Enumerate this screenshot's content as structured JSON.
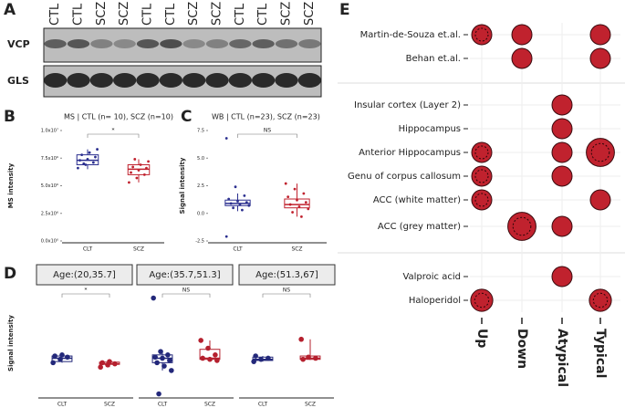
{
  "panel_labels": [
    "A",
    "B",
    "C",
    "D",
    "E"
  ],
  "blot": {
    "lanes": [
      "CTL",
      "CTL",
      "SCZ",
      "SCZ",
      "CTL",
      "CTL",
      "SCZ",
      "SCZ",
      "CTL",
      "CTL",
      "SCZ",
      "SCZ"
    ],
    "rows": [
      "VCP",
      "GLS"
    ]
  },
  "chart_data": [
    {
      "type": "box",
      "title": "MS | CTL (n= 10), SCZ (n=10)",
      "y_label": "MS intensity",
      "categories": [
        "CLT",
        "SCZ"
      ],
      "ylim": [
        0,
        10000000
      ],
      "yticks": [
        {
          "value": 0,
          "label": "0.0x10⁰"
        },
        {
          "value": 2500000,
          "label": "2.5x10⁶"
        },
        {
          "value": 5000000,
          "label": "5.0x10⁶"
        },
        {
          "value": 7500000,
          "label": "7.5x10⁶"
        },
        {
          "value": 10000000,
          "label": "1.0x10⁷"
        }
      ],
      "significance": "*",
      "boxes": [
        {
          "color": "#2b2f8f",
          "whisker_low": 6500000,
          "q1": 6900000,
          "median": 7300000,
          "q3": 7800000,
          "whisker_high": 8300000,
          "points": [
            6600000,
            6900000,
            7100000,
            7300000,
            7400000,
            7600000,
            7800000,
            8000000,
            8300000,
            7000000
          ]
        },
        {
          "color": "#c0222e",
          "whisker_low": 5300000,
          "q1": 6000000,
          "median": 6500000,
          "q3": 6900000,
          "whisker_high": 7400000,
          "points": [
            5300000,
            5700000,
            6000000,
            6200000,
            6400000,
            6600000,
            6700000,
            6900000,
            7200000,
            7400000
          ]
        }
      ]
    },
    {
      "type": "box",
      "title": "WB | CTL (n=23), SCZ (n=23)",
      "y_label": "Signal intensity",
      "categories": [
        "CLT",
        "SCZ"
      ],
      "ylim": [
        -2.5,
        7.5
      ],
      "yticks": [
        {
          "value": -2.5,
          "label": "-2.5"
        },
        {
          "value": 0,
          "label": "0.0"
        },
        {
          "value": 2.5,
          "label": "2.5"
        },
        {
          "value": 5,
          "label": "5.0"
        },
        {
          "value": 7.5,
          "label": "7.5"
        }
      ],
      "significance": "NS",
      "boxes": [
        {
          "color": "#2b2f8f",
          "whisker_low": 0.2,
          "q1": 0.7,
          "median": 0.9,
          "q3": 1.2,
          "whisker_high": 1.8,
          "points": [
            6.8,
            2.4,
            1.6,
            1.3,
            1.1,
            1.0,
            0.9,
            0.8,
            0.7,
            0.5,
            0.3,
            -2.1
          ]
        },
        {
          "color": "#c0222e",
          "whisker_low": -0.3,
          "q1": 0.5,
          "median": 0.8,
          "q3": 1.3,
          "whisker_high": 2.7,
          "points": [
            2.7,
            2.2,
            1.8,
            1.5,
            1.2,
            1.0,
            0.8,
            0.6,
            0.4,
            0.1,
            -0.3
          ]
        }
      ]
    },
    {
      "type": "box",
      "title": "Age:(20,35.7]",
      "y_label": "Signal intensity",
      "categories": [
        "CLT",
        "SCZ"
      ],
      "ylim": [
        -2.5,
        7
      ],
      "significance": "*",
      "boxes": [
        {
          "color": "#23287a",
          "whisker_low": 0.5,
          "q1": 0.6,
          "median": 0.9,
          "q3": 1.1,
          "whisker_high": 1.2,
          "points": [
            0.5,
            0.8,
            1.0,
            1.1,
            1.2
          ]
        },
        {
          "color": "#b5202e",
          "whisker_low": 0.1,
          "q1": 0.35,
          "median": 0.4,
          "q3": 0.55,
          "whisker_high": 0.6,
          "points": [
            0.1,
            0.3,
            0.4,
            0.5,
            0.6
          ]
        }
      ]
    },
    {
      "type": "box",
      "title": "Age:(35.7,51.3]",
      "categories": [
        "CLT",
        "SCZ"
      ],
      "ylim": [
        -2.5,
        7
      ],
      "significance": "NS",
      "boxes": [
        {
          "color": "#23287a",
          "whisker_low": -0.2,
          "q1": 0.5,
          "median": 0.9,
          "q3": 1.2,
          "whisker_high": 1.5,
          "points": [
            6.3,
            1.5,
            1.2,
            1.0,
            0.9,
            0.7,
            0.5,
            0.2,
            -0.2,
            -2.3
          ]
        },
        {
          "color": "#b5202e",
          "whisker_low": 0.7,
          "q1": 0.8,
          "median": 0.9,
          "q3": 1.7,
          "whisker_high": 2.5,
          "points": [
            2.5,
            1.8,
            1.2,
            0.9,
            0.8,
            0.7
          ]
        }
      ]
    },
    {
      "type": "box",
      "title": "Age:(51.3,67]",
      "categories": [
        "CLT",
        "SCZ"
      ],
      "ylim": [
        -2.5,
        7
      ],
      "significance": "NS",
      "boxes": [
        {
          "color": "#23287a",
          "whisker_low": 0.6,
          "q1": 0.7,
          "median": 0.8,
          "q3": 1.0,
          "whisker_high": 1.1,
          "points": [
            0.6,
            0.8,
            0.9,
            1.1
          ]
        },
        {
          "color": "#b5202e",
          "whisker_low": 0.75,
          "q1": 0.8,
          "median": 0.9,
          "q3": 1.1,
          "whisker_high": 2.6,
          "points": [
            2.6,
            1.0,
            0.9,
            0.8
          ]
        }
      ]
    },
    {
      "type": "dot",
      "categories": [
        "Martin-de-Souza et.al.",
        "Behan et.al.",
        "Insular cortex (Layer 2)",
        "Hippocampus",
        "Anterior Hippocampus",
        "Genu of corpus callosum",
        "ACC (white matter)",
        "ACC (grey matter)",
        "Valproic acid",
        "Haloperidol"
      ],
      "columns": [
        "Up",
        "Down",
        "Atypical",
        "Typical"
      ],
      "color": "#c0222e",
      "values": [
        [
          1,
          1,
          null,
          1
        ],
        [
          null,
          1,
          null,
          1
        ],
        [
          null,
          null,
          1,
          null
        ],
        [
          null,
          null,
          1,
          null
        ],
        [
          1,
          null,
          1,
          1.4
        ],
        [
          1,
          null,
          1,
          null
        ],
        [
          1,
          null,
          null,
          1
        ],
        [
          null,
          1.4,
          1,
          null
        ],
        [
          null,
          null,
          1,
          null
        ],
        [
          1.1,
          null,
          null,
          1.1
        ]
      ]
    }
  ]
}
